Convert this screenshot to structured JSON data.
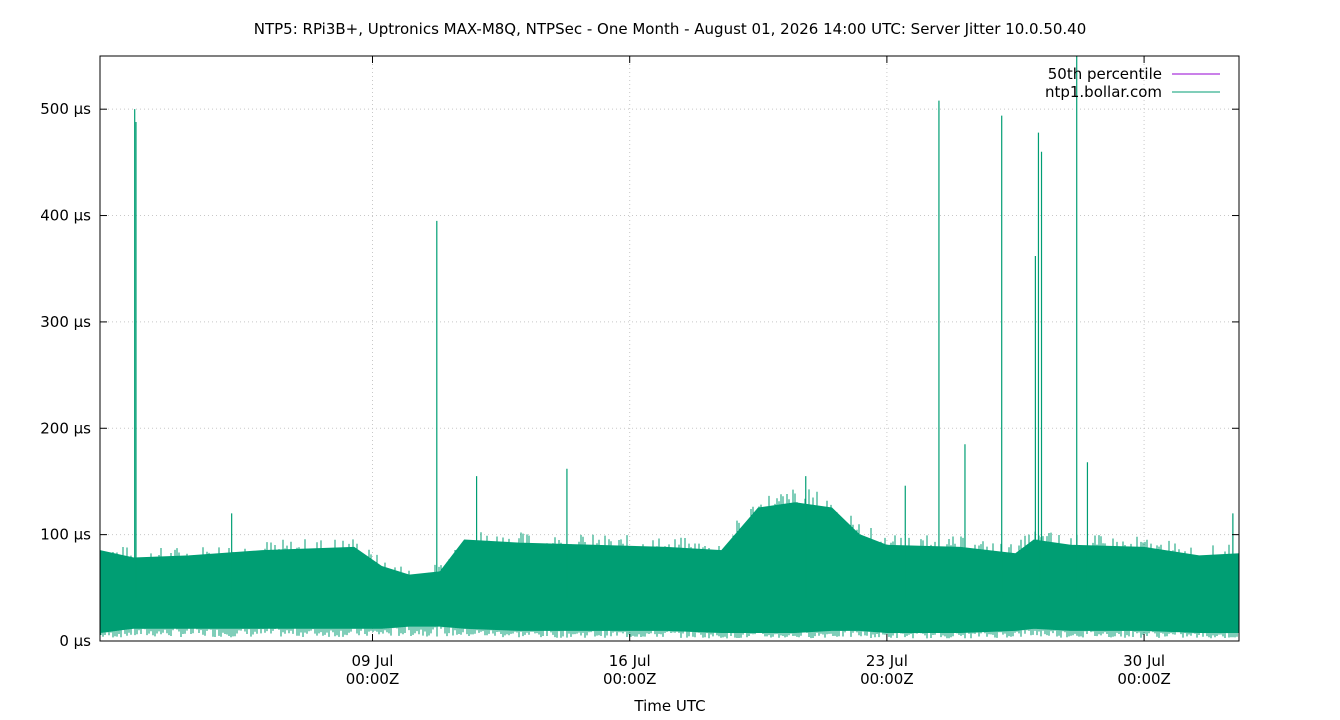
{
  "chart_data": {
    "type": "line",
    "title": "NTP5: RPi3B+, Uptronics MAX-M8Q, NTPSec - One Month - August 01, 2026 14:00 UTC: Server Jitter 10.0.50.40",
    "xlabel": "Time UTC",
    "ylabel": "",
    "y_unit": "µs",
    "xlim": [
      "2026-07-01 14:00",
      "2026-08-01 14:00"
    ],
    "ylim": [
      0,
      550
    ],
    "grid": true,
    "legend_position": "top-right",
    "y_ticks": [
      {
        "value": 0,
        "label": "0 µs"
      },
      {
        "value": 100,
        "label": "100 µs"
      },
      {
        "value": 200,
        "label": "200 µs"
      },
      {
        "value": 300,
        "label": "300 µs"
      },
      {
        "value": 400,
        "label": "400 µs"
      },
      {
        "value": 500,
        "label": "500 µs"
      }
    ],
    "x_ticks": [
      {
        "value": "2026-07-09 00:00",
        "label1": "09 Jul",
        "label2": "00:00Z"
      },
      {
        "value": "2026-07-16 00:00",
        "label1": "16 Jul",
        "label2": "00:00Z"
      },
      {
        "value": "2026-07-23 00:00",
        "label1": "23 Jul",
        "label2": "00:00Z"
      },
      {
        "value": "2026-07-30 00:00",
        "label1": "30 Jul",
        "label2": "00:00Z"
      }
    ],
    "series": [
      {
        "name": "50th percentile",
        "color": "#9400d3",
        "values": []
      },
      {
        "name": "ntp1.bollar.com",
        "color": "#009e73",
        "envelope": {
          "x": [
            "2026-07-01 14:00",
            "2026-07-02 12:00",
            "2026-07-04 00:00",
            "2026-07-06 00:00",
            "2026-07-08 12:00",
            "2026-07-09 06:00",
            "2026-07-10 00:00",
            "2026-07-10 20:00",
            "2026-07-11 12:00",
            "2026-07-13 00:00",
            "2026-07-15 00:00",
            "2026-07-17 00:00",
            "2026-07-18 12:00",
            "2026-07-19 12:00",
            "2026-07-20 12:00",
            "2026-07-21 12:00",
            "2026-07-22 06:00",
            "2026-07-23 00:00",
            "2026-07-25 00:00",
            "2026-07-26 12:00",
            "2026-07-27 00:00",
            "2026-07-28 00:00",
            "2026-07-30 00:00",
            "2026-07-31 12:00",
            "2026-08-01 14:00"
          ],
          "low": [
            8,
            12,
            12,
            12,
            12,
            12,
            14,
            14,
            12,
            10,
            10,
            10,
            8,
            8,
            8,
            10,
            10,
            8,
            8,
            10,
            12,
            10,
            10,
            8,
            8
          ],
          "high": [
            85,
            78,
            80,
            85,
            88,
            70,
            62,
            65,
            95,
            92,
            90,
            88,
            85,
            125,
            130,
            125,
            100,
            90,
            88,
            82,
            95,
            90,
            88,
            80,
            82
          ]
        },
        "spikes": [
          {
            "x": "2026-07-02 12:40",
            "y": 500
          },
          {
            "x": "2026-07-02 13:30",
            "y": 488
          },
          {
            "x": "2026-07-10 18:00",
            "y": 395
          },
          {
            "x": "2026-07-11 20:00",
            "y": 155
          },
          {
            "x": "2026-07-14 07:00",
            "y": 162
          },
          {
            "x": "2026-07-05 04:00",
            "y": 120
          },
          {
            "x": "2026-07-20 19:00",
            "y": 155
          },
          {
            "x": "2026-07-23 12:00",
            "y": 146
          },
          {
            "x": "2026-07-24 10:00",
            "y": 508
          },
          {
            "x": "2026-07-25 03:00",
            "y": 185
          },
          {
            "x": "2026-07-26 03:00",
            "y": 494
          },
          {
            "x": "2026-07-27 01:00",
            "y": 362
          },
          {
            "x": "2026-07-27 03:00",
            "y": 478
          },
          {
            "x": "2026-07-27 05:00",
            "y": 460
          },
          {
            "x": "2026-07-28 04:00",
            "y": 550
          },
          {
            "x": "2026-07-28 11:00",
            "y": 168
          },
          {
            "x": "2026-08-01 10:00",
            "y": 120
          }
        ]
      }
    ]
  }
}
